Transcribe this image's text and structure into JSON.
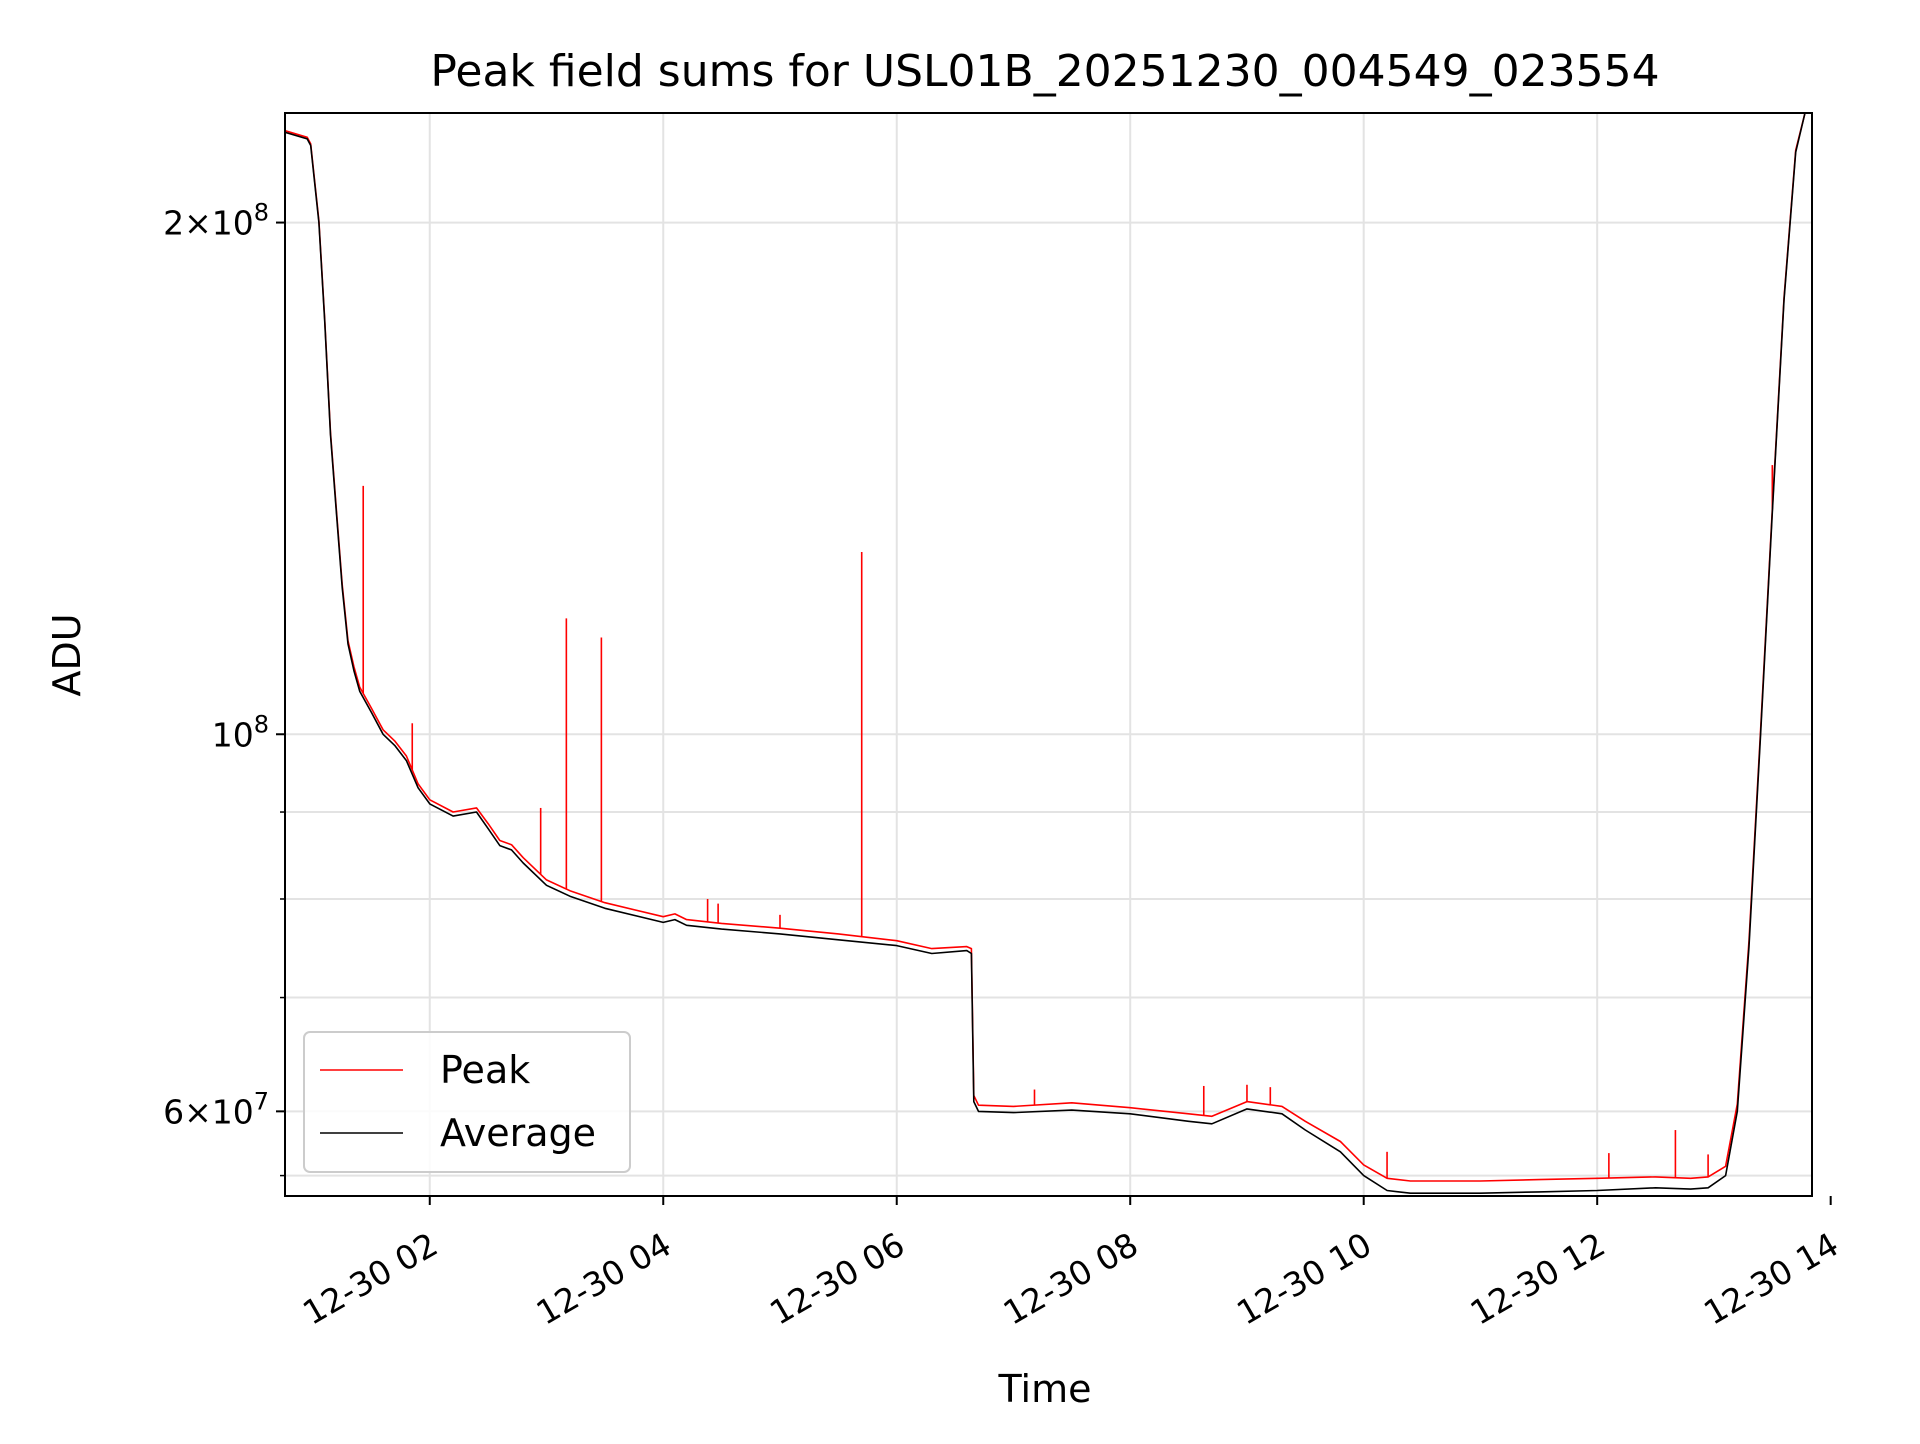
{
  "chart_data": {
    "type": "line",
    "title": "Peak field sums for USL01B_20251230_004549_023554",
    "xlabel": "Time",
    "ylabel": "ADU",
    "yscale": "log",
    "xlim": [
      0.76,
      13.84
    ],
    "ylim": [
      53500000,
      232000000
    ],
    "x_unit": "hours since 2025-12-30 00:00",
    "x_ticks": [
      {
        "value": 2,
        "label": "12-30 02"
      },
      {
        "value": 4,
        "label": "12-30 04"
      },
      {
        "value": 6,
        "label": "12-30 06"
      },
      {
        "value": 8,
        "label": "12-30 08"
      },
      {
        "value": 10,
        "label": "12-30 10"
      },
      {
        "value": 12,
        "label": "12-30 12"
      },
      {
        "value": 14,
        "label": "12-30 14"
      }
    ],
    "y_ticks_major": [
      {
        "value": 200000000,
        "mantissa": "2",
        "exp": "8"
      },
      {
        "value": 100000000,
        "mantissa": "",
        "exp": "8"
      },
      {
        "value": 60000000,
        "mantissa": "6",
        "exp": "7"
      }
    ],
    "y_ticks_minor": [
      70000000,
      80000000,
      90000000,
      55000000
    ],
    "grid": true,
    "legend": {
      "position": "lower-left",
      "entries": [
        {
          "label": "Peak",
          "color": "#ff0000"
        },
        {
          "label": "Average",
          "color": "#000000"
        }
      ]
    },
    "series": [
      {
        "name": "Average",
        "color": "#000000",
        "x": [
          0.76,
          0.95,
          0.98,
          1.05,
          1.1,
          1.15,
          1.2,
          1.25,
          1.3,
          1.35,
          1.4,
          1.5,
          1.6,
          1.7,
          1.8,
          1.9,
          2.0,
          2.2,
          2.4,
          2.5,
          2.6,
          2.7,
          2.8,
          3.0,
          3.2,
          3.5,
          4.0,
          4.1,
          4.2,
          4.5,
          5.0,
          5.5,
          6.0,
          6.3,
          6.6,
          6.64,
          6.66,
          6.7,
          7.0,
          7.5,
          8.0,
          8.5,
          8.7,
          9.0,
          9.3,
          9.5,
          9.8,
          10.0,
          10.2,
          10.4,
          10.6,
          11.0,
          11.5,
          12.0,
          12.5,
          12.8,
          12.95,
          13.1,
          13.2,
          13.3,
          13.4,
          13.5,
          13.6,
          13.7,
          13.78
        ],
        "y": [
          226000000,
          224000000,
          222000000,
          200000000,
          175000000,
          150000000,
          135000000,
          122000000,
          113000000,
          109000000,
          106000000,
          103000000,
          100000000,
          98500000,
          96500000,
          93000000,
          91000000,
          89500000,
          90000000,
          88000000,
          86000000,
          85500000,
          84000000,
          81500000,
          80300000,
          79000000,
          77500000,
          77800000,
          77200000,
          76800000,
          76300000,
          75700000,
          75100000,
          74300000,
          74600000,
          74300000,
          60800000,
          60000000,
          59900000,
          60100000,
          59800000,
          59200000,
          59000000,
          60200000,
          59800000,
          58500000,
          56800000,
          55000000,
          53900000,
          53700000,
          53700000,
          53700000,
          53800000,
          53900000,
          54100000,
          54000000,
          54100000,
          55000000,
          60000000,
          75000000,
          100000000,
          135000000,
          180000000,
          220000000,
          232000000
        ]
      },
      {
        "name": "Peak",
        "color": "#ff0000",
        "x": [
          0.76,
          0.95,
          0.98,
          1.05,
          1.1,
          1.15,
          1.2,
          1.25,
          1.3,
          1.35,
          1.4,
          1.5,
          1.6,
          1.7,
          1.8,
          1.9,
          2.0,
          2.2,
          2.4,
          2.5,
          2.6,
          2.7,
          2.8,
          3.0,
          3.2,
          3.5,
          4.0,
          4.1,
          4.2,
          4.5,
          5.0,
          5.5,
          6.0,
          6.3,
          6.6,
          6.64,
          6.66,
          6.7,
          7.0,
          7.5,
          8.0,
          8.5,
          8.7,
          9.0,
          9.3,
          9.5,
          9.8,
          10.0,
          10.2,
          10.4,
          10.6,
          11.0,
          11.5,
          12.0,
          12.5,
          12.8,
          12.95,
          13.1,
          13.2,
          13.3,
          13.4,
          13.5,
          13.6,
          13.7,
          13.78
        ],
        "y": [
          226500000,
          224500000,
          222500000,
          200500000,
          175500000,
          150500000,
          135500000,
          122500000,
          113500000,
          109600000,
          106600000,
          103600000,
          100600000,
          99100000,
          97100000,
          93500000,
          91500000,
          90000000,
          90500000,
          88600000,
          86600000,
          86100000,
          84600000,
          82100000,
          80900000,
          79600000,
          78100000,
          78400000,
          77800000,
          77400000,
          76900000,
          76300000,
          75600000,
          74800000,
          75000000,
          74800000,
          61300000,
          60500000,
          60400000,
          60700000,
          60300000,
          59800000,
          59600000,
          60800000,
          60400000,
          59200000,
          57600000,
          55800000,
          54800000,
          54600000,
          54600000,
          54600000,
          54700000,
          54800000,
          54900000,
          54800000,
          54900000,
          55700000,
          60600000,
          75600000,
          100600000,
          135600000,
          180600000,
          220600000,
          232000000
        ],
        "spikes": [
          {
            "x": 1.43,
            "y": 140000000
          },
          {
            "x": 1.85,
            "y": 101500000
          },
          {
            "x": 2.95,
            "y": 90500000
          },
          {
            "x": 3.17,
            "y": 117000000
          },
          {
            "x": 3.47,
            "y": 114000000
          },
          {
            "x": 4.38,
            "y": 80000000
          },
          {
            "x": 4.47,
            "y": 79500000
          },
          {
            "x": 5.0,
            "y": 78300000
          },
          {
            "x": 5.7,
            "y": 128000000
          },
          {
            "x": 7.18,
            "y": 61800000
          },
          {
            "x": 8.63,
            "y": 62100000
          },
          {
            "x": 9.0,
            "y": 62200000
          },
          {
            "x": 9.2,
            "y": 62000000
          },
          {
            "x": 10.2,
            "y": 56800000
          },
          {
            "x": 12.1,
            "y": 56700000
          },
          {
            "x": 12.67,
            "y": 58500000
          },
          {
            "x": 12.95,
            "y": 56600000
          },
          {
            "x": 13.5,
            "y": 144000000
          }
        ]
      }
    ]
  }
}
